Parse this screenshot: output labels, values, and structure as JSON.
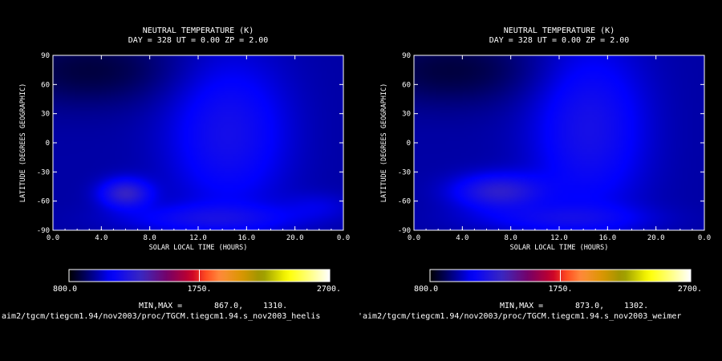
{
  "chart_data": [
    {
      "type": "heatmap",
      "title": "NEUTRAL TEMPERATURE (K)",
      "subtitle": "DAY = 328   UT =  0.00  ZP =   2.00",
      "xlabel": "SOLAR LOCAL TIME (HOURS)",
      "ylabel": "LATITUDE (DEGREES GEOGRAPHIC)",
      "xlim": [
        0,
        24
      ],
      "ylim": [
        -90,
        90
      ],
      "x_ticks": [
        "0.0",
        "4.0",
        "8.0",
        "12.0",
        "16.0",
        "20.0",
        "0.0"
      ],
      "y_ticks": [
        "90",
        "60",
        "30",
        "0",
        "-30",
        "-60",
        "-90"
      ],
      "colorbar": {
        "min_label": "800.0",
        "mid_label": "1750.",
        "max_label": "2700."
      },
      "minmax": {
        "label": "MIN,MAX =",
        "min": "867.0,",
        "max": "1310."
      },
      "features": [
        {
          "x": 14.5,
          "y": 10,
          "value": 1180,
          "sx": 3.4,
          "sy": 55
        },
        {
          "x": 6.0,
          "y": -52,
          "value": 1300,
          "sx": 1.4,
          "sy": 10
        },
        {
          "x": 13.0,
          "y": -78,
          "value": 1150,
          "sx": 5.0,
          "sy": 10
        },
        {
          "x": 3.0,
          "y": 75,
          "value": 880,
          "sx": 5.0,
          "sy": 25
        },
        {
          "x": 22.0,
          "y": -65,
          "value": 1060,
          "sx": 2.0,
          "sy": 10
        }
      ],
      "background_value": 1000,
      "path": "'aim2/tgcm/tiegcm1.94/nov2003/proc/TGCM.tiegcm1.94.s_nov2003_heelis"
    },
    {
      "type": "heatmap",
      "title": "NEUTRAL TEMPERATURE (K)",
      "subtitle": "DAY = 328   UT =  0.00  ZP =   2.00",
      "xlabel": "SOLAR LOCAL TIME (HOURS)",
      "ylabel": "LATITUDE (DEGREES GEOGRAPHIC)",
      "xlim": [
        0,
        24
      ],
      "ylim": [
        -90,
        90
      ],
      "x_ticks": [
        "0.0",
        "4.0",
        "8.0",
        "12.0",
        "16.0",
        "20.0",
        "0.0"
      ],
      "y_ticks": [
        "90",
        "60",
        "30",
        "0",
        "-30",
        "-60",
        "-90"
      ],
      "colorbar": {
        "min_label": "800.0",
        "mid_label": "1750.",
        "max_label": "2700."
      },
      "minmax": {
        "label": "MIN,MAX =",
        "min": "873.0,",
        "max": "1302."
      },
      "features": [
        {
          "x": 14.5,
          "y": 15,
          "value": 1190,
          "sx": 3.2,
          "sy": 60
        },
        {
          "x": 7.0,
          "y": -50,
          "value": 1270,
          "sx": 2.5,
          "sy": 12
        },
        {
          "x": 12.0,
          "y": -78,
          "value": 1130,
          "sx": 5.0,
          "sy": 10
        },
        {
          "x": 3.0,
          "y": 75,
          "value": 880,
          "sx": 5.0,
          "sy": 25
        }
      ],
      "background_value": 1000,
      "path": "'aim2/tgcm/tiegcm1.94/nov2003/proc/TGCM.tiegcm1.94.s_nov2003_weimer"
    }
  ]
}
